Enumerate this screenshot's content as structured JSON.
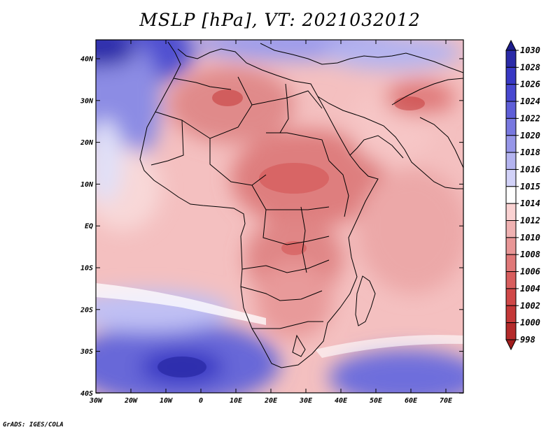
{
  "title": "MSLP [hPa], VT: 2021032012",
  "credit": "GrADS: IGES/COLA",
  "lat_ticks": [
    "40N",
    "30N",
    "20N",
    "10N",
    "EQ",
    "10S",
    "20S",
    "30S",
    "40S"
  ],
  "lon_ticks": [
    "30W",
    "20W",
    "10W",
    "0",
    "10E",
    "20E",
    "30E",
    "40E",
    "50E",
    "60E",
    "70E"
  ],
  "colorbar": {
    "levels": [
      "1030",
      "1028",
      "1026",
      "1024",
      "1022",
      "1020",
      "1018",
      "1016",
      "1015",
      "1014",
      "1012",
      "1010",
      "1008",
      "1006",
      "1004",
      "1002",
      "1000",
      "998"
    ],
    "colors": [
      "#1c1c8c",
      "#2a2aa8",
      "#3838c4",
      "#4848d0",
      "#5e5ed8",
      "#7878e0",
      "#9696e8",
      "#b4b4f0",
      "#d2d2f8",
      "#ffffff",
      "#fad2d2",
      "#f0b2b2",
      "#e89696",
      "#e07878",
      "#d85e5e",
      "#d04848",
      "#c43838",
      "#b42a2a",
      "#a01c1c"
    ]
  },
  "map": {
    "lon_range": [
      -30,
      75
    ],
    "lat_range": [
      -40,
      45
    ],
    "field_name": "MSLP",
    "units": "hPa"
  }
}
